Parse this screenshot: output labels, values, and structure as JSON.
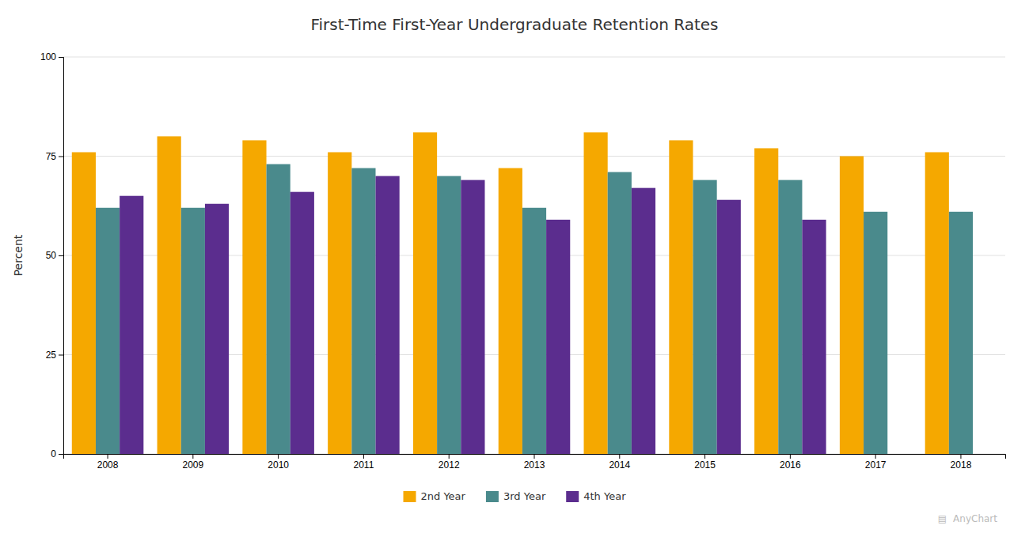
{
  "chart_data": {
    "type": "bar",
    "title": "First-Time First-Year Undergraduate Retention Rates",
    "y_label": "Percent",
    "categories": [
      "2008",
      "2009",
      "2010",
      "2011",
      "2012",
      "2013",
      "2014",
      "2015",
      "2016",
      "2017",
      "2018"
    ],
    "series": [
      {
        "name": "2nd Year",
        "color": "#F5A800",
        "values": [
          76,
          80,
          79,
          76,
          81,
          72,
          81,
          79,
          77,
          75,
          76
        ]
      },
      {
        "name": "3rd Year",
        "color": "#4A8A8C",
        "values": [
          62,
          62,
          73,
          72,
          70,
          62,
          71,
          69,
          69,
          61,
          61
        ]
      },
      {
        "name": "4th Year",
        "color": "#5B2D8E",
        "values": [
          65,
          63,
          66,
          70,
          69,
          59,
          67,
          64,
          59,
          null,
          null
        ]
      }
    ],
    "ylim": [
      0,
      100
    ],
    "yticks": [
      0,
      25,
      50,
      75,
      100
    ],
    "grid": true,
    "legend": "bottom",
    "annotations": [
      "▤",
      "AnyChart"
    ]
  }
}
